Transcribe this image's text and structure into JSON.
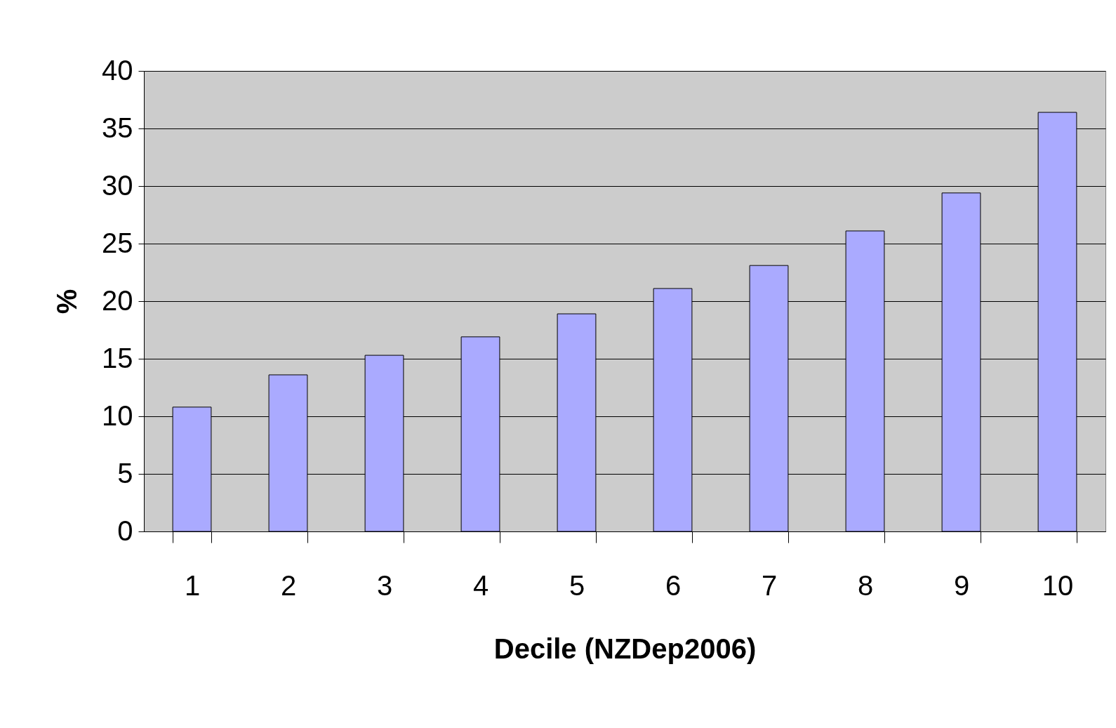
{
  "chart_data": {
    "type": "bar",
    "xlabel": "Decile (NZDep2006)",
    "ylabel": "%",
    "categories": [
      "1",
      "2",
      "3",
      "4",
      "5",
      "6",
      "7",
      "8",
      "9",
      "10"
    ],
    "values": [
      10.8,
      13.6,
      15.3,
      16.9,
      18.9,
      21.1,
      23.1,
      26.1,
      29.4,
      36.4
    ],
    "color": "#aaaaff",
    "ylim": [
      0,
      40
    ],
    "yticks": [
      0,
      5,
      10,
      15,
      20,
      25,
      30,
      35,
      40
    ],
    "grid": "y"
  }
}
